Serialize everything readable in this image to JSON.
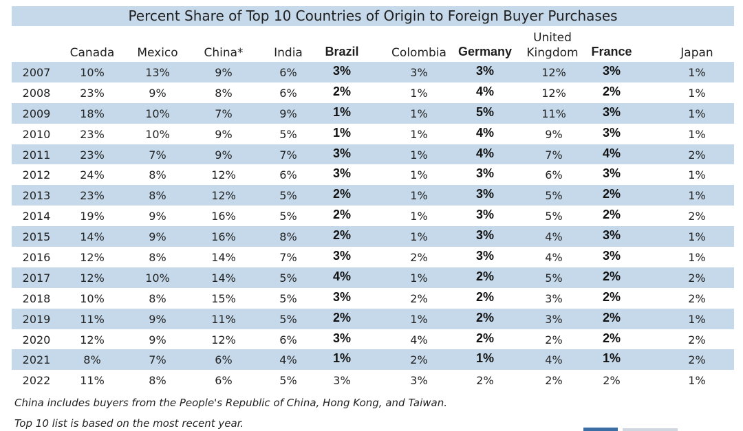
{
  "chart_data": {
    "type": "table",
    "title": "Percent Share of Top 10 Countries of Origin to Foreign Buyer Purchases",
    "columns": [
      {
        "name": "Canada",
        "bold": false
      },
      {
        "name": "Mexico",
        "bold": false
      },
      {
        "name": "China*",
        "bold": false
      },
      {
        "name": "India",
        "bold": false
      },
      {
        "name": "Brazil",
        "bold": true
      },
      {
        "name": "Colombia",
        "bold": false
      },
      {
        "name": "Germany",
        "bold": true
      },
      {
        "name": "United Kingdom",
        "bold": false
      },
      {
        "name": "France",
        "bold": true
      },
      {
        "name": "Japan",
        "bold": false
      }
    ],
    "rows": [
      {
        "year": "2007",
        "values": [
          "10%",
          "13%",
          "9%",
          "6%",
          "3%",
          "3%",
          "3%",
          "12%",
          "3%",
          "1%"
        ]
      },
      {
        "year": "2008",
        "values": [
          "23%",
          "9%",
          "8%",
          "6%",
          "2%",
          "1%",
          "4%",
          "12%",
          "2%",
          "1%"
        ]
      },
      {
        "year": "2009",
        "values": [
          "18%",
          "10%",
          "7%",
          "9%",
          "1%",
          "1%",
          "5%",
          "11%",
          "3%",
          "1%"
        ]
      },
      {
        "year": "2010",
        "values": [
          "23%",
          "10%",
          "9%",
          "5%",
          "1%",
          "1%",
          "4%",
          "9%",
          "3%",
          "1%"
        ]
      },
      {
        "year": "2011",
        "values": [
          "23%",
          "7%",
          "9%",
          "7%",
          "3%",
          "1%",
          "4%",
          "7%",
          "4%",
          "2%"
        ]
      },
      {
        "year": "2012",
        "values": [
          "24%",
          "8%",
          "12%",
          "6%",
          "3%",
          "1%",
          "3%",
          "6%",
          "3%",
          "1%"
        ]
      },
      {
        "year": "2013",
        "values": [
          "23%",
          "8%",
          "12%",
          "5%",
          "2%",
          "1%",
          "3%",
          "5%",
          "2%",
          "1%"
        ]
      },
      {
        "year": "2014",
        "values": [
          "19%",
          "9%",
          "16%",
          "5%",
          "2%",
          "1%",
          "3%",
          "5%",
          "2%",
          "2%"
        ]
      },
      {
        "year": "2015",
        "values": [
          "14%",
          "9%",
          "16%",
          "8%",
          "2%",
          "1%",
          "3%",
          "4%",
          "3%",
          "1%"
        ]
      },
      {
        "year": "2016",
        "values": [
          "12%",
          "8%",
          "14%",
          "7%",
          "3%",
          "2%",
          "3%",
          "4%",
          "3%",
          "1%"
        ]
      },
      {
        "year": "2017",
        "values": [
          "12%",
          "10%",
          "14%",
          "5%",
          "4%",
          "1%",
          "2%",
          "5%",
          "2%",
          "2%"
        ]
      },
      {
        "year": "2018",
        "values": [
          "10%",
          "8%",
          "15%",
          "5%",
          "3%",
          "2%",
          "2%",
          "3%",
          "2%",
          "2%"
        ]
      },
      {
        "year": "2019",
        "values": [
          "11%",
          "9%",
          "11%",
          "5%",
          "2%",
          "1%",
          "2%",
          "3%",
          "2%",
          "1%"
        ]
      },
      {
        "year": "2020",
        "values": [
          "12%",
          "9%",
          "12%",
          "6%",
          "3%",
          "4%",
          "2%",
          "2%",
          "2%",
          "2%"
        ]
      },
      {
        "year": "2021",
        "values": [
          "8%",
          "7%",
          "6%",
          "4%",
          "1%",
          "2%",
          "1%",
          "4%",
          "1%",
          "2%"
        ]
      },
      {
        "year": "2022",
        "values": [
          "11%",
          "8%",
          "6%",
          "5%",
          "3%",
          "3%",
          "2%",
          "2%",
          "2%",
          "1%"
        ]
      }
    ],
    "bold_rows_through": "2021",
    "footnotes": [
      "China includes buyers from the People's Republic of China, Hong Kong, and Taiwan.",
      "Top 10 list is based on the most recent year."
    ],
    "colors": {
      "band": "#c5d9ea",
      "text": "#222222"
    }
  }
}
